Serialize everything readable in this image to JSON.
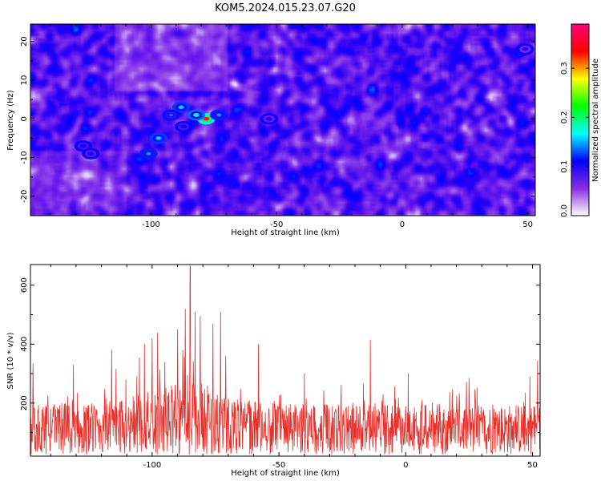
{
  "title": "KOM5.2024.015.23.07.G20",
  "chart_data": [
    {
      "type": "heatmap",
      "xlabel": "Height of straight line (km)",
      "ylabel": "Frequency (Hz)",
      "xlim": [
        -148,
        53
      ],
      "ylim": [
        -25,
        24.5
      ],
      "xticks": [
        -100,
        -50,
        0,
        50
      ],
      "xtick_labels": [
        "-100",
        "-50",
        "0",
        "50"
      ],
      "yticks": [
        -20,
        -10,
        0,
        10,
        20
      ],
      "ytick_labels": [
        "-20",
        "-10",
        "0",
        "10",
        "20"
      ],
      "colorbar": {
        "label": "Normalized spectral amplitude",
        "range": [
          0.0,
          0.39
        ],
        "ticks": [
          0.0,
          0.1,
          0.2,
          0.3
        ],
        "tick_labels": [
          "0.0",
          "0.1",
          "0.2",
          "0.3"
        ],
        "colormap": [
          "#ffffff",
          "#8a2be2",
          "#0000ff",
          "#00ffff",
          "#00ff00",
          "#ffff00",
          "#ff0000",
          "#ff0080"
        ]
      },
      "hotspots": [
        {
          "x": -78,
          "y": 0,
          "value": 0.38
        },
        {
          "x": -82,
          "y": 1,
          "value": 0.2
        },
        {
          "x": -88,
          "y": 3,
          "value": 0.17
        },
        {
          "x": -97,
          "y": -5,
          "value": 0.17
        },
        {
          "x": -101,
          "y": -9,
          "value": 0.15
        },
        {
          "x": -92,
          "y": 1,
          "value": 0.14
        },
        {
          "x": -73,
          "y": 1,
          "value": 0.15
        },
        {
          "x": -127,
          "y": -7,
          "value": 0.12
        },
        {
          "x": -124,
          "y": -9,
          "value": 0.11
        },
        {
          "x": -53,
          "y": 0,
          "value": 0.1
        },
        {
          "x": -87,
          "y": -2,
          "value": 0.12
        },
        {
          "x": 49,
          "y": 18,
          "value": 0.09
        }
      ]
    },
    {
      "type": "line",
      "xlabel": "Height of straight line (km)",
      "ylabel": "SNR (10 * v/v)",
      "xlim": [
        -148,
        53
      ],
      "ylim": [
        20,
        670
      ],
      "xticks": [
        -100,
        -50,
        0,
        50
      ],
      "xtick_labels": [
        "-100",
        "-50",
        "0",
        "50"
      ],
      "yticks": [
        200,
        400,
        600
      ],
      "ytick_labels": [
        "200",
        "400",
        "600"
      ],
      "color": "#e8302a",
      "baseline": 115,
      "peaks": [
        {
          "x": -85,
          "y": 665
        },
        {
          "x": -87,
          "y": 520
        },
        {
          "x": -83,
          "y": 510
        },
        {
          "x": -73,
          "y": 510
        },
        {
          "x": -81,
          "y": 495
        },
        {
          "x": -90,
          "y": 450
        },
        {
          "x": -76,
          "y": 470
        },
        {
          "x": -100,
          "y": 420
        },
        {
          "x": -103,
          "y": 400
        },
        {
          "x": -58,
          "y": 400
        },
        {
          "x": -14,
          "y": 415
        },
        {
          "x": -116,
          "y": 380
        },
        {
          "x": -147,
          "y": 335
        },
        {
          "x": -131,
          "y": 330
        },
        {
          "x": -71,
          "y": 360
        },
        {
          "x": -95,
          "y": 340
        },
        {
          "x": -40,
          "y": 300
        },
        {
          "x": 1,
          "y": 300
        },
        {
          "x": 25,
          "y": 285
        },
        {
          "x": 49,
          "y": 290
        },
        {
          "x": 52,
          "y": 345
        }
      ]
    }
  ]
}
